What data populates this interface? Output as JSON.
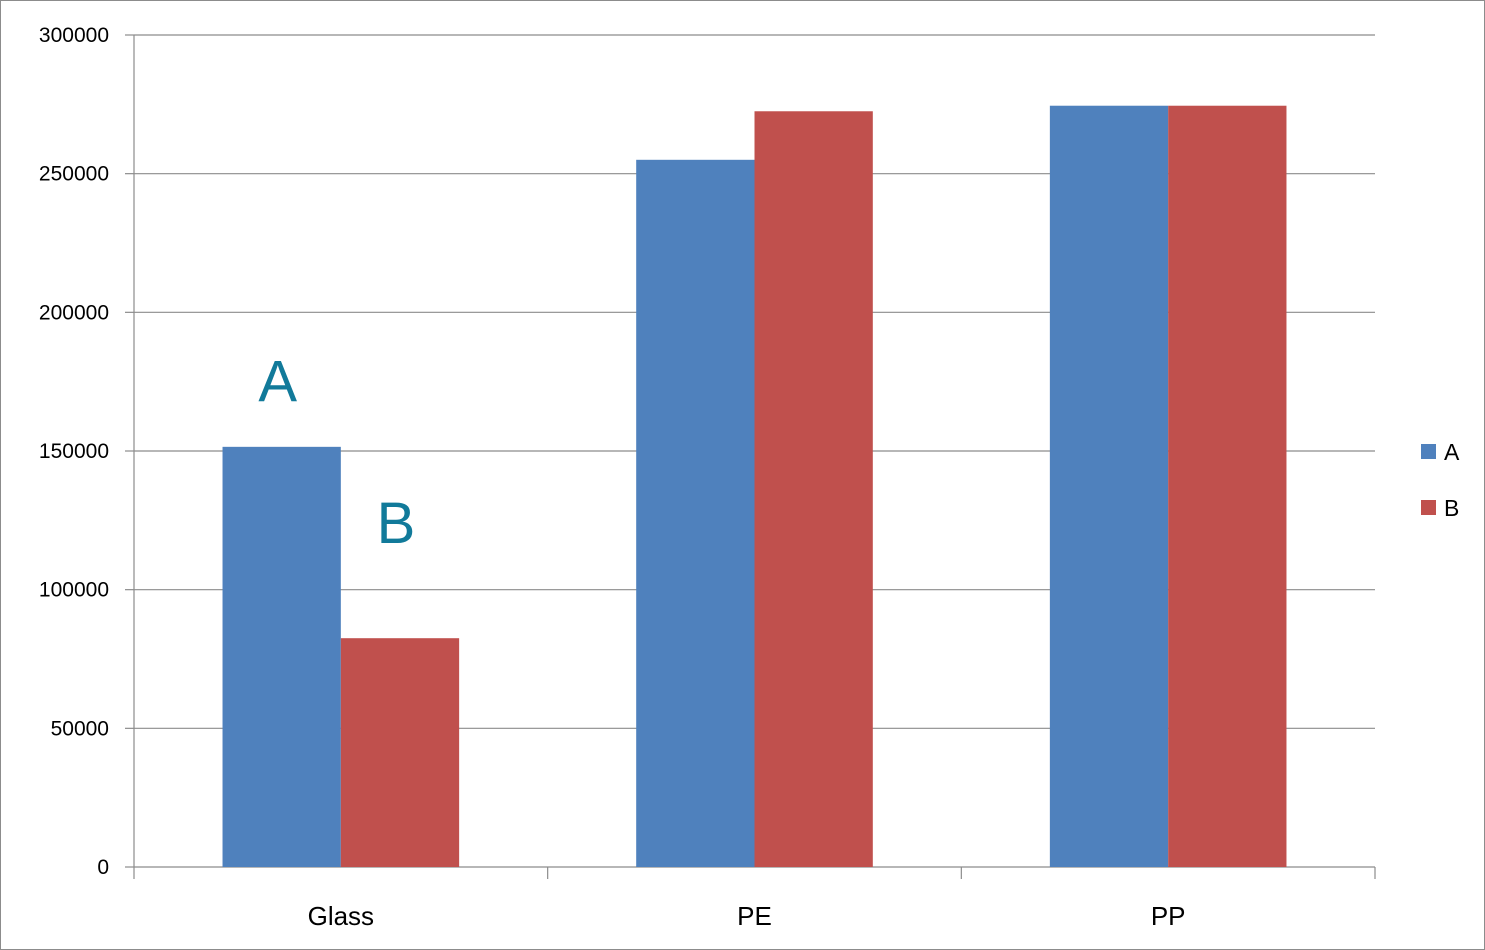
{
  "chart_data": {
    "type": "bar",
    "title": "",
    "xlabel": "",
    "ylabel": "",
    "categories": [
      "Glass",
      "PE",
      "PP"
    ],
    "series": [
      {
        "name": "A",
        "values": [
          151500,
          255000,
          274500
        ],
        "color": "#4f81bd"
      },
      {
        "name": "B",
        "values": [
          82500,
          272500,
          274500
        ],
        "color": "#c0504d"
      }
    ],
    "ylim": [
      0,
      300000
    ],
    "yticks": [
      0,
      50000,
      100000,
      150000,
      200000,
      250000,
      300000
    ],
    "ytick_labels": [
      "0",
      "50000",
      "100000",
      "150000",
      "200000",
      "250000",
      "300000"
    ],
    "grid": true,
    "legend_position": "right",
    "annotations": [
      {
        "text": "A",
        "category": "Glass",
        "series": "A",
        "y": 175000
      },
      {
        "text": "B",
        "category": "Glass",
        "series": "B",
        "y": 124000
      }
    ],
    "annotation_color": "#117a9a"
  }
}
